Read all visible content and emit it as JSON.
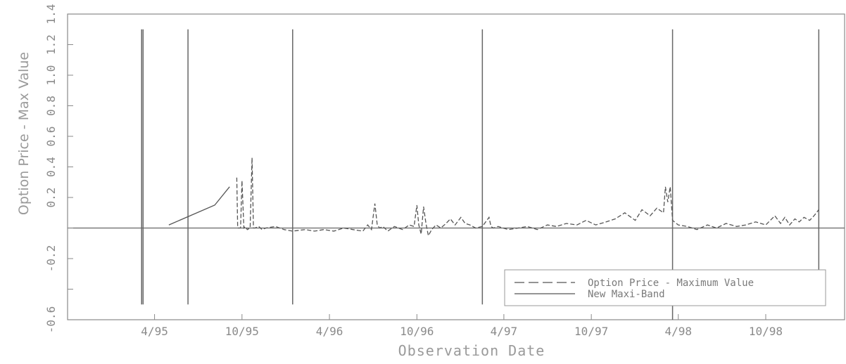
{
  "chart_data": {
    "type": "line",
    "xlabel": "Observation Date",
    "ylabel": "Option Price - Max Value",
    "ylim": [
      -0.6,
      1.4
    ],
    "xlim": [
      "1994-10-01",
      "1999-03-15"
    ],
    "y_ticks": [
      -0.6,
      -0.4,
      -0.2,
      0.0,
      0.2,
      0.4,
      0.6,
      0.8,
      1.0,
      1.2,
      1.4
    ],
    "y_tick_labels": [
      "-0.6",
      "",
      "-0.2",
      "",
      "0.2",
      "0.4",
      "0.6",
      "0.8",
      "1.0",
      "1.2",
      "1.4"
    ],
    "x_ticks": [
      {
        "date": "1995-04-01",
        "label": "4/95"
      },
      {
        "date": "1995-10-01",
        "label": "10/95"
      },
      {
        "date": "1996-04-01",
        "label": "4/96"
      },
      {
        "date": "1996-10-01",
        "label": "10/96"
      },
      {
        "date": "1997-04-01",
        "label": "4/97"
      },
      {
        "date": "1997-10-01",
        "label": "10/97"
      },
      {
        "date": "1998-04-01",
        "label": "4/98"
      },
      {
        "date": "1998-10-01",
        "label": "10/98"
      }
    ],
    "grid": false,
    "reference_line_y": 0,
    "legend": {
      "placement": "bottom-right",
      "entries": [
        "Option Price - Maximum Value",
        "New Maxi-Band"
      ]
    },
    "vertical_lines": [
      {
        "date": "1995-03-05",
        "y_range": [
          -0.5,
          1.3
        ]
      },
      {
        "date": "1995-03-08",
        "y_range": [
          -0.5,
          1.3
        ]
      },
      {
        "date": "1995-06-10",
        "y_range": [
          -0.5,
          1.3
        ]
      },
      {
        "date": "1996-01-15",
        "y_range": [
          -0.5,
          1.3
        ]
      },
      {
        "date": "1997-02-15",
        "y_range": [
          -0.5,
          1.3
        ]
      },
      {
        "date": "1998-03-20",
        "y_range": [
          -0.6,
          1.3
        ]
      },
      {
        "date": "1999-01-20",
        "y_range": [
          -0.3,
          1.3
        ]
      }
    ],
    "series": [
      {
        "name": "Option Price - Maximum Value",
        "style": "dashed",
        "x": [
          "1995-09-20",
          "1995-09-22",
          "1995-09-25",
          "1995-09-28",
          "1995-10-01",
          "1995-10-05",
          "1995-10-08",
          "1995-10-12",
          "1995-10-18",
          "1995-10-22",
          "1995-10-25",
          "1995-10-28",
          "1995-11-05",
          "1995-11-12",
          "1995-11-20",
          "1995-12-10",
          "1995-12-28",
          "1996-01-15",
          "1996-02-10",
          "1996-03-01",
          "1996-03-20",
          "1996-04-10",
          "1996-05-01",
          "1996-05-20",
          "1996-06-10",
          "1996-06-20",
          "1996-06-28",
          "1996-07-05",
          "1996-07-10",
          "1996-07-15",
          "1996-07-22",
          "1996-08-01",
          "1996-08-15",
          "1996-09-01",
          "1996-09-15",
          "1996-09-25",
          "1996-10-01",
          "1996-10-05",
          "1996-10-10",
          "1996-10-15",
          "1996-10-20",
          "1996-10-25",
          "1996-11-01",
          "1996-11-10",
          "1996-11-20",
          "1996-12-01",
          "1996-12-10",
          "1996-12-20",
          "1997-01-01",
          "1997-01-10",
          "1997-01-20",
          "1997-02-01",
          "1997-02-15",
          "1997-03-01",
          "1997-03-05",
          "1997-03-10",
          "1997-03-20",
          "1997-04-10",
          "1997-05-01",
          "1997-05-20",
          "1997-06-10",
          "1997-07-01",
          "1997-07-20",
          "1997-08-10",
          "1997-09-01",
          "1997-09-20",
          "1997-10-10",
          "1997-11-01",
          "1997-11-20",
          "1997-12-10",
          "1998-01-01",
          "1998-01-15",
          "1998-02-01",
          "1998-02-15",
          "1998-03-01",
          "1998-03-05",
          "1998-03-10",
          "1998-03-15",
          "1998-03-20",
          "1998-04-01",
          "1998-04-20",
          "1998-05-10",
          "1998-06-01",
          "1998-06-20",
          "1998-07-10",
          "1998-08-01",
          "1998-08-20",
          "1998-09-10",
          "1998-10-01",
          "1998-10-20",
          "1998-11-01",
          "1998-11-10",
          "1998-11-20",
          "1998-12-01",
          "1998-12-10",
          "1998-12-20",
          "1999-01-01",
          "1999-01-10",
          "1999-01-20"
        ],
        "values": [
          0.33,
          0.0,
          0.0,
          0.0,
          0.31,
          0.0,
          0.01,
          -0.01,
          0.0,
          0.46,
          0.0,
          0.0,
          0.01,
          -0.01,
          0.0,
          0.01,
          -0.01,
          -0.02,
          -0.01,
          -0.02,
          -0.01,
          -0.02,
          0.0,
          -0.01,
          -0.02,
          0.02,
          -0.01,
          0.16,
          0.02,
          0.0,
          0.01,
          -0.02,
          0.01,
          -0.01,
          0.02,
          0.01,
          0.15,
          0.02,
          -0.04,
          0.14,
          0.03,
          -0.05,
          -0.01,
          0.02,
          0.0,
          0.03,
          0.06,
          0.02,
          0.07,
          0.03,
          0.02,
          0.0,
          0.01,
          0.07,
          0.01,
          0.0,
          0.01,
          -0.01,
          0.0,
          0.01,
          -0.01,
          0.02,
          0.01,
          0.03,
          0.02,
          0.05,
          0.02,
          0.04,
          0.06,
          0.1,
          0.05,
          0.12,
          0.08,
          0.13,
          0.1,
          0.27,
          0.17,
          0.27,
          0.05,
          0.02,
          0.01,
          -0.01,
          0.02,
          0.0,
          0.03,
          0.01,
          0.02,
          0.04,
          0.02,
          0.08,
          0.03,
          0.07,
          0.02,
          0.06,
          0.04,
          0.07,
          0.05,
          0.08,
          0.12
        ]
      },
      {
        "name": "New Maxi-Band",
        "style": "solid",
        "x": [
          "1995-05-01",
          "1995-08-05",
          "1995-09-05"
        ],
        "values": [
          0.02,
          0.15,
          0.27
        ]
      }
    ]
  }
}
